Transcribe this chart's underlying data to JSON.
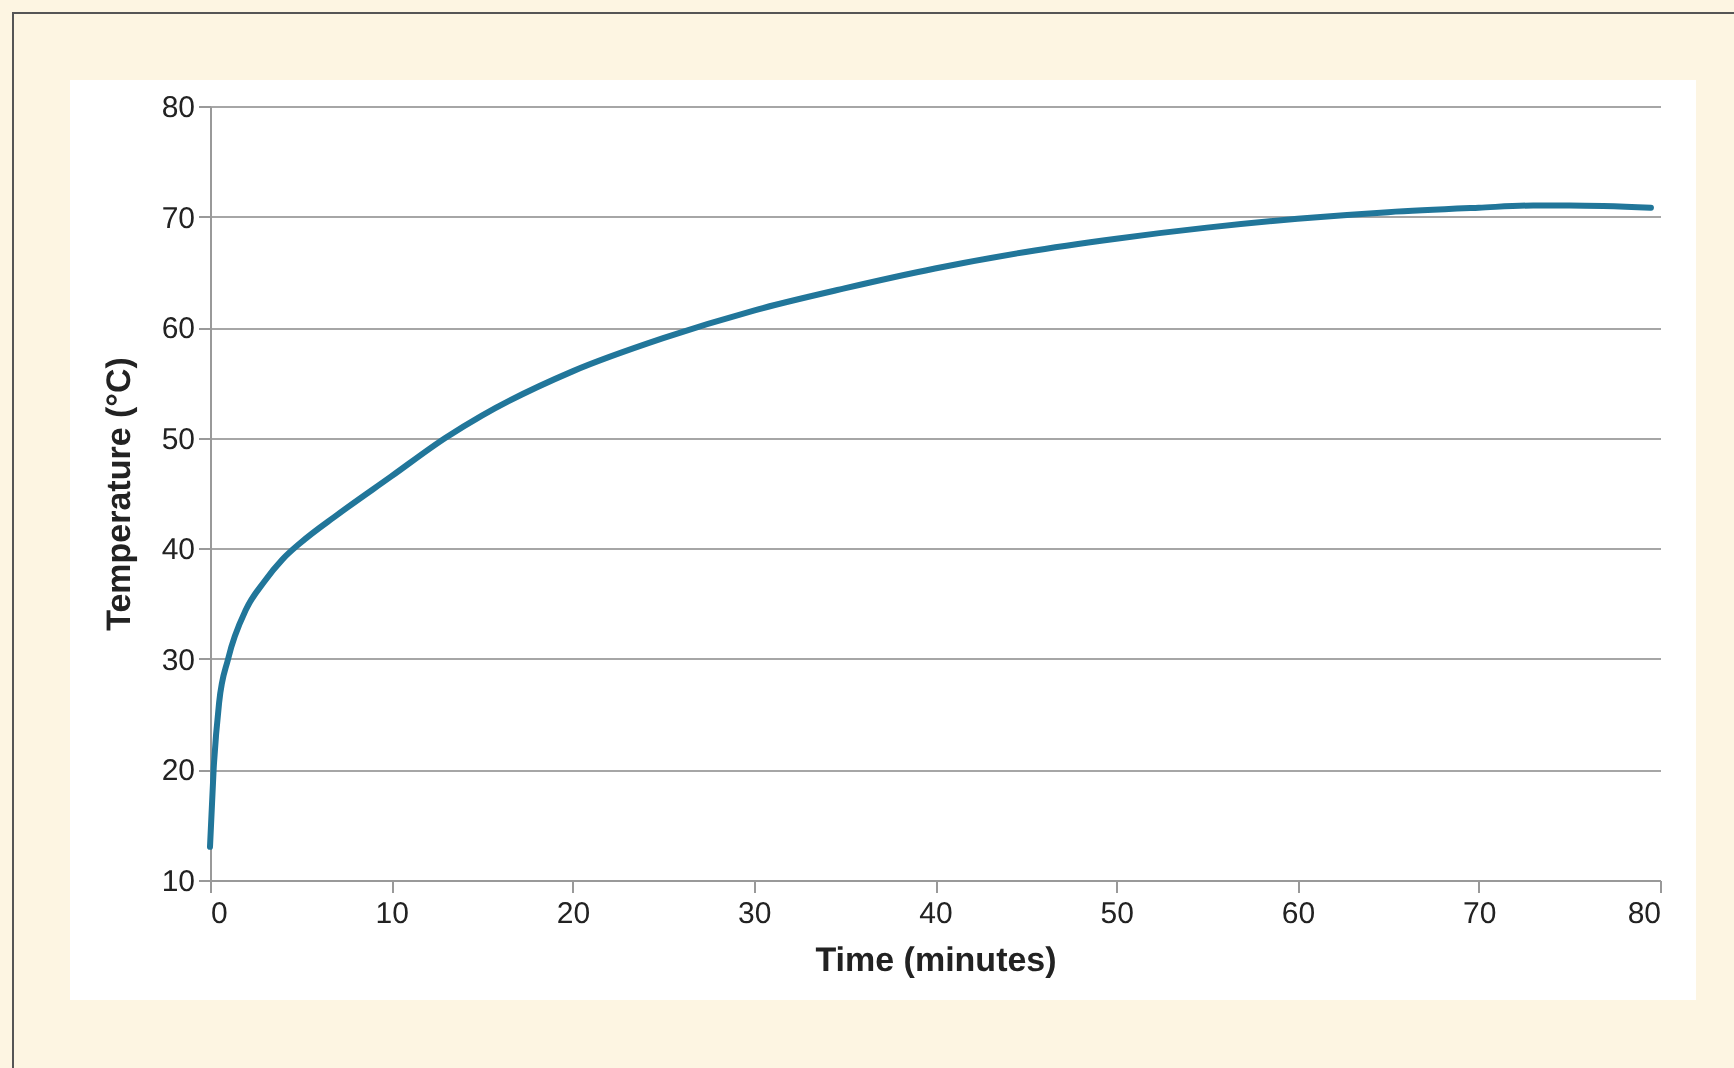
{
  "chart_data": {
    "type": "line",
    "xlabel": "Time (minutes)",
    "ylabel": "Temperature (°C)",
    "x": [
      0,
      0.2,
      0.5,
      1,
      2,
      3,
      4,
      5,
      7,
      10,
      13,
      15,
      20,
      25,
      30,
      35,
      40,
      45,
      50,
      55,
      60,
      65,
      70,
      73,
      75,
      79.5
    ],
    "series": [
      {
        "color": "#21769a",
        "values": [
          13,
          20,
          26,
          30,
          34.5,
          37,
          39,
          40.5,
          43,
          46.5,
          50,
          52,
          56,
          59,
          61.5,
          63.5,
          65.3,
          66.8,
          68,
          69,
          69.8,
          70.4,
          70.8,
          71,
          71,
          70.8
        ]
      }
    ],
    "xlim": [
      0,
      80
    ],
    "ylim": [
      10,
      80
    ],
    "xticks": [
      0,
      10,
      20,
      30,
      40,
      50,
      60,
      70,
      80
    ],
    "yticks": [
      10,
      20,
      30,
      40,
      50,
      60,
      70,
      80
    ],
    "grid": "y",
    "marker": "none",
    "line_style": "solid"
  }
}
